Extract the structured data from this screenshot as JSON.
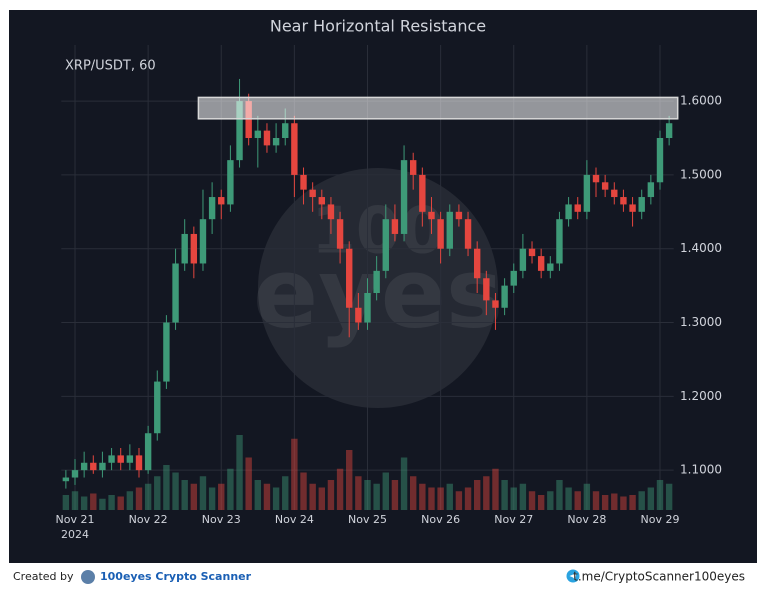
{
  "chart_data": {
    "type": "candlestick",
    "title": "Near Horizontal Resistance",
    "symbol": "XRP/USDT, 60",
    "categories": [
      null,
      "Nov 21",
      null,
      null,
      null,
      null,
      null,
      null,
      null,
      "Nov 22",
      null,
      null,
      null,
      null,
      null,
      null,
      null,
      "Nov 23",
      null,
      null,
      null,
      null,
      null,
      null,
      null,
      "Nov 24",
      null,
      null,
      null,
      null,
      null,
      null,
      null,
      "Nov 25",
      null,
      null,
      null,
      null,
      null,
      null,
      null,
      "Nov 26",
      null,
      null,
      null,
      null,
      null,
      null,
      null,
      "Nov 27",
      null,
      null,
      null,
      null,
      null,
      null,
      null,
      "Nov 28",
      null,
      null,
      null,
      null,
      null,
      null,
      null,
      "Nov 29",
      null
    ],
    "x_year": "2024",
    "open": [
      1.085,
      1.09,
      1.1,
      1.11,
      1.1,
      1.11,
      1.12,
      1.11,
      1.12,
      1.1,
      1.15,
      1.22,
      1.3,
      1.38,
      1.42,
      1.38,
      1.44,
      1.47,
      1.46,
      1.52,
      1.6,
      1.55,
      1.56,
      1.54,
      1.55,
      1.57,
      1.5,
      1.48,
      1.47,
      1.46,
      1.44,
      1.4,
      1.32,
      1.3,
      1.34,
      1.37,
      1.44,
      1.42,
      1.52,
      1.5,
      1.45,
      1.44,
      1.4,
      1.45,
      1.44,
      1.4,
      1.36,
      1.33,
      1.32,
      1.35,
      1.37,
      1.4,
      1.39,
      1.37,
      1.38,
      1.44,
      1.46,
      1.45,
      1.5,
      1.49,
      1.48,
      1.47,
      1.46,
      1.45,
      1.47,
      1.49,
      1.55
    ],
    "high": [
      1.1,
      1.115,
      1.125,
      1.12,
      1.125,
      1.13,
      1.13,
      1.135,
      1.13,
      1.16,
      1.235,
      1.31,
      1.4,
      1.44,
      1.43,
      1.48,
      1.49,
      1.48,
      1.54,
      1.63,
      1.61,
      1.58,
      1.57,
      1.57,
      1.59,
      1.58,
      1.51,
      1.49,
      1.48,
      1.47,
      1.45,
      1.41,
      1.34,
      1.36,
      1.39,
      1.46,
      1.46,
      1.54,
      1.53,
      1.51,
      1.47,
      1.45,
      1.46,
      1.46,
      1.45,
      1.41,
      1.37,
      1.34,
      1.36,
      1.38,
      1.42,
      1.41,
      1.4,
      1.39,
      1.45,
      1.47,
      1.47,
      1.52,
      1.51,
      1.5,
      1.49,
      1.48,
      1.47,
      1.48,
      1.5,
      1.56,
      1.58
    ],
    "low": [
      1.075,
      1.08,
      1.09,
      1.095,
      1.09,
      1.1,
      1.1,
      1.1,
      1.09,
      1.095,
      1.14,
      1.21,
      1.29,
      1.37,
      1.36,
      1.37,
      1.42,
      1.44,
      1.45,
      1.51,
      1.54,
      1.51,
      1.53,
      1.53,
      1.54,
      1.47,
      1.46,
      1.45,
      1.44,
      1.42,
      1.38,
      1.28,
      1.29,
      1.29,
      1.33,
      1.36,
      1.41,
      1.41,
      1.48,
      1.43,
      1.42,
      1.38,
      1.39,
      1.43,
      1.39,
      1.34,
      1.31,
      1.29,
      1.31,
      1.34,
      1.36,
      1.38,
      1.36,
      1.36,
      1.37,
      1.43,
      1.44,
      1.44,
      1.47,
      1.47,
      1.46,
      1.45,
      1.43,
      1.44,
      1.46,
      1.48,
      1.54
    ],
    "close": [
      1.09,
      1.1,
      1.11,
      1.1,
      1.11,
      1.12,
      1.11,
      1.12,
      1.1,
      1.15,
      1.22,
      1.3,
      1.38,
      1.42,
      1.38,
      1.44,
      1.47,
      1.46,
      1.52,
      1.6,
      1.55,
      1.56,
      1.54,
      1.55,
      1.57,
      1.5,
      1.48,
      1.47,
      1.46,
      1.44,
      1.4,
      1.32,
      1.3,
      1.34,
      1.37,
      1.44,
      1.42,
      1.52,
      1.5,
      1.45,
      1.44,
      1.4,
      1.45,
      1.44,
      1.4,
      1.36,
      1.33,
      1.32,
      1.35,
      1.37,
      1.4,
      1.39,
      1.37,
      1.38,
      1.44,
      1.46,
      1.45,
      1.5,
      1.49,
      1.48,
      1.47,
      1.46,
      1.45,
      1.47,
      1.49,
      1.55,
      1.57
    ],
    "volume": [
      20,
      25,
      18,
      22,
      15,
      20,
      18,
      25,
      30,
      35,
      45,
      60,
      50,
      40,
      35,
      45,
      30,
      35,
      55,
      100,
      70,
      40,
      35,
      30,
      45,
      95,
      50,
      35,
      30,
      40,
      55,
      80,
      45,
      40,
      35,
      50,
      40,
      70,
      45,
      35,
      30,
      30,
      35,
      25,
      30,
      40,
      45,
      55,
      40,
      30,
      35,
      25,
      20,
      25,
      40,
      30,
      25,
      35,
      25,
      20,
      22,
      18,
      20,
      25,
      30,
      40,
      35
    ],
    "up_color": "#3e9a78",
    "down_color": "#e5463f",
    "ylim": [
      1.046,
      1.676
    ],
    "volume_ylim": [
      0,
      100
    ],
    "yticks": [
      {
        "value": 1.1,
        "label": "1.1000"
      },
      {
        "value": 1.2,
        "label": "1.2000"
      },
      {
        "value": 1.3,
        "label": "1.3000"
      },
      {
        "value": 1.4,
        "label": "1.4000"
      },
      {
        "value": 1.5,
        "label": "1.5000"
      },
      {
        "value": 1.6,
        "label": "1.6000"
      }
    ],
    "grid": true,
    "zone": {
      "low": 1.576,
      "high": 1.605,
      "from_category": 15
    },
    "watermark": [
      "100",
      "eyes"
    ]
  },
  "footer": {
    "created_by": "Created by",
    "brand": "100eyes Crypto Scanner",
    "link": "t.me/CryptoScanner100eyes"
  }
}
